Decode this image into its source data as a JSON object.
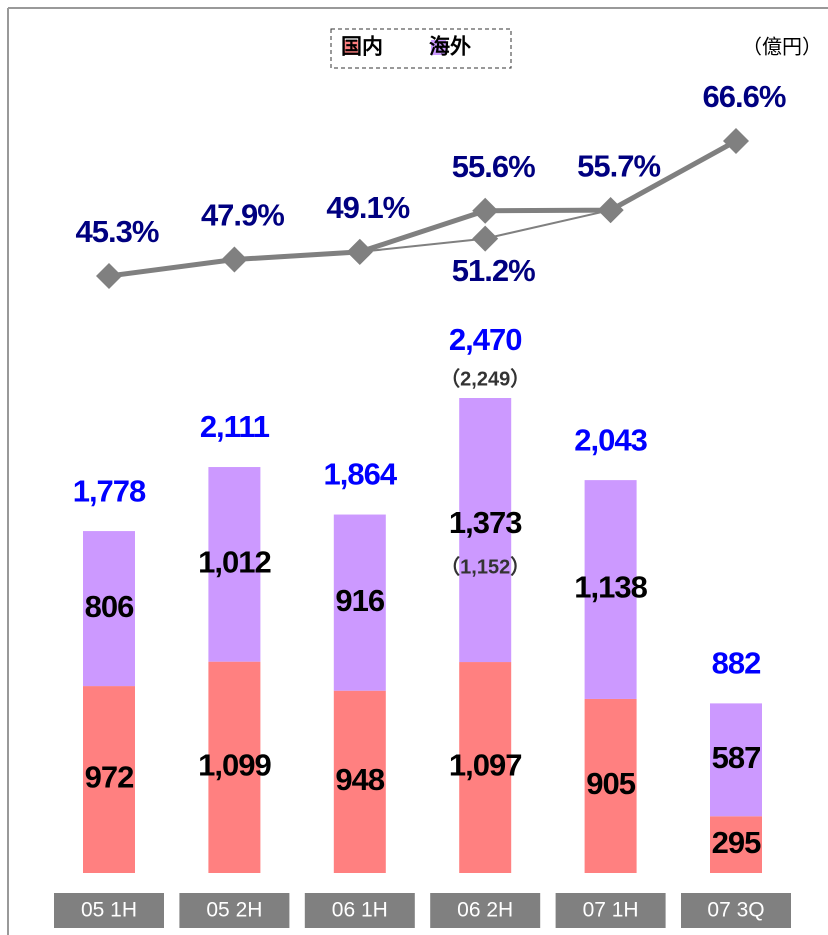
{
  "chart_data": {
    "type": "stacked-bar-line",
    "unit": "（億円）",
    "categories": [
      "05 1H",
      "05 2H",
      "06 1H",
      "06 2H",
      "07 1H",
      "07 3Q"
    ],
    "series": [
      {
        "name": "国内",
        "color": "#ff8080",
        "values": [
          972,
          1099,
          948,
          1097,
          905,
          295
        ],
        "value_labels": [
          "972",
          "1,099",
          "948",
          "1,097",
          "905",
          "295"
        ]
      },
      {
        "name": "海外",
        "color": "#cc99ff",
        "values": [
          806,
          1012,
          916,
          1373,
          1138,
          587
        ],
        "value_labels": [
          "806",
          "1,012",
          "916",
          "1,373",
          "1,138",
          "587"
        ],
        "alt_values": [
          null,
          null,
          null,
          1152,
          null,
          null
        ],
        "alt_labels": [
          null,
          null,
          null,
          "（1,152）",
          null,
          null
        ]
      }
    ],
    "totals": {
      "color": "#0000ff",
      "values": [
        1778,
        2111,
        1864,
        2470,
        2043,
        882
      ],
      "value_labels": [
        "1,778",
        "2,111",
        "1,864",
        "2,470",
        "2,043",
        "882"
      ],
      "alt_values": [
        null,
        null,
        null,
        2249,
        null,
        null
      ],
      "alt_labels": [
        null,
        null,
        null,
        "（2,249）",
        null,
        null
      ]
    },
    "lines": [
      {
        "color": "#808080",
        "label_color": "#000080",
        "width": 5,
        "values": [
          45.3,
          47.9,
          49.1,
          55.6,
          55.7,
          66.6
        ],
        "value_labels": [
          "45.3%",
          "47.9%",
          "49.1%",
          "55.6%",
          "55.7%",
          "66.6%"
        ]
      },
      {
        "color": "#808080",
        "label_color": "#000080",
        "width": 2,
        "values": [
          null,
          null,
          49.1,
          51.2,
          55.7,
          null
        ],
        "value_labels": [
          null,
          null,
          null,
          "51.2%",
          null,
          null
        ]
      }
    ]
  }
}
